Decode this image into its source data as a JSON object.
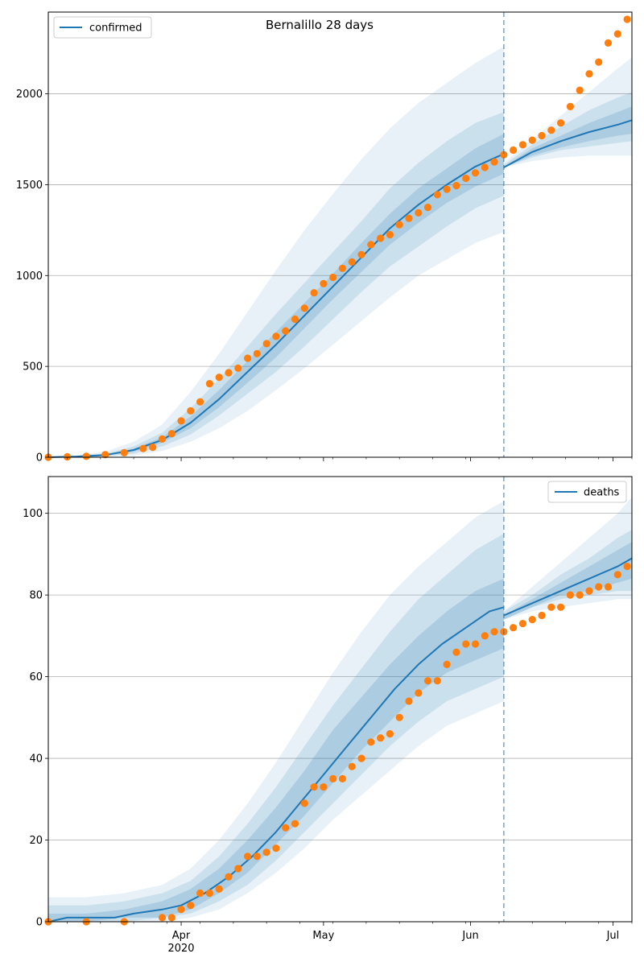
{
  "chart_data": [
    {
      "type": "line",
      "title": "Bernalillo 28 days",
      "xlabel": "",
      "ylabel": "",
      "x_range": [
        "2020-03-04",
        "2020-07-05"
      ],
      "ylim": [
        0,
        2450
      ],
      "yticks": [
        0,
        500,
        1000,
        1500,
        2000
      ],
      "grid": "horizontal",
      "legend": {
        "position": "top-left",
        "entries": [
          "confirmed"
        ]
      },
      "forecast_start": "2020-06-08",
      "series": [
        {
          "name": "confirmed",
          "kind": "line",
          "color": "#1f77b4",
          "x": [
            "2020-03-04",
            "2020-03-10",
            "2020-03-16",
            "2020-03-22",
            "2020-03-28",
            "2020-04-03",
            "2020-04-09",
            "2020-04-15",
            "2020-04-21",
            "2020-04-27",
            "2020-05-03",
            "2020-05-09",
            "2020-05-15",
            "2020-05-21",
            "2020-05-27",
            "2020-06-02",
            "2020-06-08"
          ],
          "values": [
            0,
            4,
            12,
            40,
            95,
            190,
            320,
            470,
            620,
            780,
            940,
            1100,
            1260,
            1390,
            1500,
            1600,
            1670
          ]
        },
        {
          "kind": "scatter",
          "color": "#ff7f0e",
          "x": [
            "2020-03-04",
            "2020-03-08",
            "2020-03-12",
            "2020-03-16",
            "2020-03-20",
            "2020-03-24",
            "2020-03-26",
            "2020-03-28",
            "2020-03-30",
            "2020-04-01",
            "2020-04-03",
            "2020-04-05",
            "2020-04-07",
            "2020-04-09",
            "2020-04-11",
            "2020-04-13",
            "2020-04-15",
            "2020-04-17",
            "2020-04-19",
            "2020-04-21",
            "2020-04-23",
            "2020-04-25",
            "2020-04-27",
            "2020-04-29",
            "2020-05-01",
            "2020-05-03",
            "2020-05-05",
            "2020-05-07",
            "2020-05-09",
            "2020-05-11",
            "2020-05-13",
            "2020-05-15",
            "2020-05-17",
            "2020-05-19",
            "2020-05-21",
            "2020-05-23",
            "2020-05-25",
            "2020-05-27",
            "2020-05-29",
            "2020-05-31",
            "2020-06-02",
            "2020-06-04",
            "2020-06-06",
            "2020-06-08",
            "2020-06-10",
            "2020-06-12",
            "2020-06-14",
            "2020-06-16",
            "2020-06-18",
            "2020-06-20",
            "2020-06-22",
            "2020-06-24",
            "2020-06-26",
            "2020-06-28",
            "2020-06-30",
            "2020-07-02",
            "2020-07-04"
          ],
          "values": [
            0,
            2,
            5,
            14,
            25,
            48,
            55,
            100,
            130,
            200,
            255,
            305,
            405,
            440,
            465,
            490,
            545,
            570,
            625,
            665,
            695,
            760,
            820,
            905,
            955,
            990,
            1040,
            1075,
            1115,
            1170,
            1205,
            1225,
            1280,
            1315,
            1345,
            1375,
            1445,
            1475,
            1495,
            1535,
            1565,
            1595,
            1625,
            1665,
            1690,
            1720,
            1745,
            1770,
            1800,
            1840,
            1930,
            2020,
            2110,
            2175,
            2280,
            2330,
            2410
          ]
        },
        {
          "name": "forecast",
          "kind": "line",
          "color": "#1f77b4",
          "x": [
            "2020-06-08",
            "2020-06-14",
            "2020-06-20",
            "2020-06-26",
            "2020-07-02",
            "2020-07-05"
          ],
          "values": [
            1595,
            1680,
            1740,
            1790,
            1830,
            1855
          ]
        }
      ],
      "bands": {
        "color": "#1f77b4",
        "historic_x": [
          "2020-03-04",
          "2020-03-10",
          "2020-03-16",
          "2020-03-22",
          "2020-03-28",
          "2020-04-03",
          "2020-04-09",
          "2020-04-15",
          "2020-04-21",
          "2020-04-27",
          "2020-05-03",
          "2020-05-09",
          "2020-05-15",
          "2020-05-21",
          "2020-05-27",
          "2020-06-02",
          "2020-06-08"
        ],
        "historic": [
          {
            "upper": [
              5,
              10,
              30,
              85,
              180,
              360,
              570,
              800,
              1030,
              1250,
              1450,
              1640,
              1810,
              1950,
              2060,
              2170,
              2260
            ],
            "lower": [
              0,
              0,
              3,
              10,
              35,
              85,
              160,
              255,
              370,
              490,
              620,
              750,
              880,
              1000,
              1090,
              1180,
              1240
            ]
          },
          {
            "upper": [
              3,
              7,
              20,
              60,
              135,
              270,
              430,
              610,
              790,
              960,
              1130,
              1300,
              1480,
              1620,
              1740,
              1840,
              1900
            ],
            "lower": [
              0,
              1,
              6,
              20,
              60,
              125,
              230,
              350,
              470,
              610,
              760,
              910,
              1050,
              1160,
              1270,
              1370,
              1440
            ]
          },
          {
            "upper": [
              2,
              5,
              15,
              48,
              110,
              225,
              370,
              530,
              690,
              850,
              1010,
              1180,
              1340,
              1480,
              1590,
              1700,
              1780
            ],
            "lower": [
              0,
              2,
              9,
              30,
              80,
              160,
              275,
              410,
              550,
              710,
              870,
              1020,
              1170,
              1290,
              1400,
              1490,
              1560
            ]
          }
        ],
        "forecast_x": [
          "2020-06-08",
          "2020-06-14",
          "2020-06-20",
          "2020-06-26",
          "2020-07-02",
          "2020-07-05"
        ],
        "forecast": [
          {
            "upper": [
              1620,
              1750,
              1880,
              2010,
              2140,
              2200
            ],
            "lower": [
              1595,
              1630,
              1650,
              1660,
              1660,
              1660
            ]
          },
          {
            "upper": [
              1610,
              1720,
              1820,
              1910,
              1980,
              2010
            ],
            "lower": [
              1595,
              1650,
              1690,
              1710,
              1730,
              1740
            ]
          },
          {
            "upper": [
              1600,
              1700,
              1770,
              1840,
              1900,
              1930
            ],
            "lower": [
              1595,
              1660,
              1705,
              1740,
              1770,
              1780
            ]
          }
        ]
      }
    },
    {
      "type": "line",
      "title": "",
      "xlabel": "",
      "ylabel": "",
      "x_range": [
        "2020-03-04",
        "2020-07-05"
      ],
      "ylim": [
        0,
        109
      ],
      "yticks": [
        0,
        20,
        40,
        60,
        80,
        100
      ],
      "grid": "horizontal",
      "legend": {
        "position": "top-right",
        "entries": [
          "deaths"
        ]
      },
      "forecast_start": "2020-06-08",
      "xticks": [
        {
          "date": "2020-04-01",
          "label": "Apr",
          "sublabel": "2020"
        },
        {
          "date": "2020-05-01",
          "label": "May"
        },
        {
          "date": "2020-06-01",
          "label": "Jun"
        },
        {
          "date": "2020-07-01",
          "label": "Jul"
        }
      ],
      "series": [
        {
          "name": "deaths",
          "kind": "line",
          "color": "#1f77b4",
          "x": [
            "2020-03-04",
            "2020-03-08",
            "2020-03-12",
            "2020-03-18",
            "2020-03-22",
            "2020-03-28",
            "2020-04-01",
            "2020-04-06",
            "2020-04-11",
            "2020-04-16",
            "2020-04-21",
            "2020-04-26",
            "2020-05-01",
            "2020-05-06",
            "2020-05-11",
            "2020-05-16",
            "2020-05-21",
            "2020-05-26",
            "2020-05-31",
            "2020-06-05",
            "2020-06-08"
          ],
          "values": [
            0,
            1,
            1,
            1,
            2,
            3,
            4,
            7,
            11,
            16,
            22,
            29,
            36,
            43,
            50,
            57,
            63,
            68,
            72,
            76,
            77
          ]
        },
        {
          "kind": "scatter",
          "color": "#ff7f0e",
          "x": [
            "2020-03-04",
            "2020-03-12",
            "2020-03-20",
            "2020-03-28",
            "2020-03-30",
            "2020-04-01",
            "2020-04-03",
            "2020-04-05",
            "2020-04-07",
            "2020-04-09",
            "2020-04-11",
            "2020-04-13",
            "2020-04-15",
            "2020-04-17",
            "2020-04-19",
            "2020-04-21",
            "2020-04-23",
            "2020-04-25",
            "2020-04-27",
            "2020-04-29",
            "2020-05-01",
            "2020-05-03",
            "2020-05-05",
            "2020-05-07",
            "2020-05-09",
            "2020-05-11",
            "2020-05-13",
            "2020-05-15",
            "2020-05-17",
            "2020-05-19",
            "2020-05-21",
            "2020-05-23",
            "2020-05-25",
            "2020-05-27",
            "2020-05-29",
            "2020-05-31",
            "2020-06-02",
            "2020-06-04",
            "2020-06-06",
            "2020-06-08",
            "2020-06-10",
            "2020-06-12",
            "2020-06-14",
            "2020-06-16",
            "2020-06-18",
            "2020-06-20",
            "2020-06-22",
            "2020-06-24",
            "2020-06-26",
            "2020-06-28",
            "2020-06-30",
            "2020-07-02",
            "2020-07-04"
          ],
          "values": [
            0,
            0,
            0,
            1,
            1,
            3,
            4,
            7,
            7,
            8,
            11,
            13,
            16,
            16,
            17,
            18,
            23,
            24,
            29,
            33,
            33,
            35,
            35,
            38,
            40,
            44,
            45,
            46,
            50,
            54,
            56,
            59,
            59,
            63,
            66,
            68,
            68,
            70,
            71,
            71,
            72,
            73,
            74,
            75,
            77,
            77,
            80,
            80,
            81,
            82,
            82,
            85,
            87
          ]
        },
        {
          "name": "forecast",
          "kind": "line",
          "color": "#1f77b4",
          "x": [
            "2020-06-08",
            "2020-06-14",
            "2020-06-20",
            "2020-06-26",
            "2020-07-02",
            "2020-07-05"
          ],
          "values": [
            75,
            78,
            81,
            84,
            87,
            89
          ]
        }
      ],
      "bands": {
        "color": "#1f77b4",
        "historic_x": [
          "2020-03-04",
          "2020-03-12",
          "2020-03-20",
          "2020-03-28",
          "2020-04-03",
          "2020-04-09",
          "2020-04-15",
          "2020-04-21",
          "2020-04-27",
          "2020-05-03",
          "2020-05-09",
          "2020-05-15",
          "2020-05-21",
          "2020-05-27",
          "2020-06-02",
          "2020-06-08"
        ],
        "historic": [
          {
            "upper": [
              6,
              6,
              7,
              9,
              13,
              20,
              29,
              39,
              50,
              61,
              71,
              80,
              87,
              93,
              99,
              103
            ],
            "lower": [
              0,
              0,
              0,
              0,
              1,
              3,
              7,
              12,
              18,
              25,
              31,
              37,
              43,
              48,
              51,
              54
            ]
          },
          {
            "upper": [
              4,
              4,
              5,
              7,
              10,
              16,
              24,
              33,
              43,
              53,
              62,
              71,
              79,
              85,
              91,
              95
            ],
            "lower": [
              0,
              0,
              0,
              1,
              2,
              5,
              9,
              15,
              22,
              29,
              36,
              43,
              49,
              54,
              57,
              60
            ]
          },
          {
            "upper": [
              2,
              2,
              3,
              5,
              8,
              13,
              20,
              28,
              37,
              47,
              55,
              63,
              70,
              76,
              81,
              84
            ],
            "lower": [
              0,
              0,
              1,
              1,
              3,
              7,
              12,
              19,
              26,
              34,
              42,
              49,
              56,
              61,
              64,
              67
            ]
          }
        ],
        "forecast_x": [
          "2020-06-08",
          "2020-06-14",
          "2020-06-20",
          "2020-06-26",
          "2020-07-02",
          "2020-07-05"
        ],
        "forecast": [
          {
            "upper": [
              76,
              82,
              88,
              94,
              100,
              104
            ],
            "lower": [
              74,
              76,
              77,
              78,
              79,
              79
            ]
          },
          {
            "upper": [
              76,
              80,
              85,
              89,
              94,
              96
            ],
            "lower": [
              74,
              77,
              79,
              80,
              81,
              81
            ]
          },
          {
            "upper": [
              75,
              79,
              83,
              87,
              91,
              93
            ],
            "lower": [
              74,
              77,
              80,
              81,
              83,
              84
            ]
          }
        ]
      }
    }
  ]
}
